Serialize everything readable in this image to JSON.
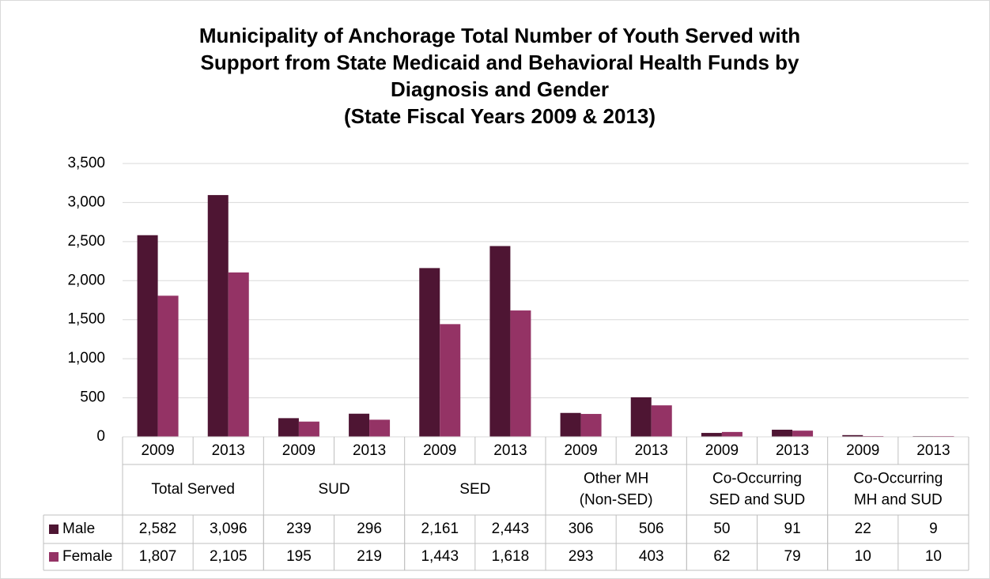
{
  "chart_data": {
    "type": "bar",
    "title": [
      "Municipality of Anchorage Total Number of Youth Served with",
      "Support from State Medicaid and Behavioral Health Funds by",
      "Diagnosis and Gender",
      "(State Fiscal Years 2009 & 2013)"
    ],
    "categories": [
      "2009",
      "2013",
      "2009",
      "2013",
      "2009",
      "2013",
      "2009",
      "2013",
      "2009",
      "2013",
      "2009",
      "2013"
    ],
    "groups": [
      [
        "Total Served"
      ],
      [
        "SUD"
      ],
      [
        "SED"
      ],
      [
        "Other MH",
        "(Non-SED)"
      ],
      [
        "Co-Occurring",
        "SED and SUD"
      ],
      [
        "Co-Occurring",
        "MH and SUD"
      ]
    ],
    "series": [
      {
        "name": "Male",
        "color": "#4e1533",
        "values": [
          2582,
          3096,
          239,
          296,
          2161,
          2443,
          306,
          506,
          50,
          91,
          22,
          9
        ],
        "value_labels": [
          "2,582",
          "3,096",
          "239",
          "296",
          "2,161",
          "2,443",
          "306",
          "506",
          "50",
          "91",
          "22",
          "9"
        ]
      },
      {
        "name": "Female",
        "color": "#943365",
        "values": [
          1807,
          2105,
          195,
          219,
          1443,
          1618,
          293,
          403,
          62,
          79,
          10,
          10
        ],
        "value_labels": [
          "1,807",
          "2,105",
          "195",
          "219",
          "1,443",
          "1,618",
          "293",
          "403",
          "62",
          "79",
          "10",
          "10"
        ]
      }
    ],
    "ylim": [
      0,
      3500
    ],
    "yticks": [
      0,
      500,
      {
        "value": 1000,
        "label": "1,000"
      },
      {
        "value": 1500,
        "label": "1,500"
      },
      {
        "value": 2000,
        "label": "2,000"
      },
      {
        "value": 2500,
        "label": "2,500"
      },
      {
        "value": 3000,
        "label": "3,000"
      },
      {
        "value": 3500,
        "label": "3,500"
      }
    ],
    "grid": true
  }
}
